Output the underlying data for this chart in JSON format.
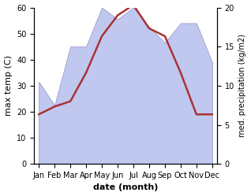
{
  "months": [
    "Jan",
    "Feb",
    "Mar",
    "Apr",
    "May",
    "Jun",
    "Jul",
    "Aug",
    "Sep",
    "Oct",
    "Nov",
    "Dec"
  ],
  "temp": [
    19,
    22,
    24,
    35,
    49,
    57,
    61,
    52,
    49,
    35,
    19,
    19
  ],
  "precip_kg": [
    10.5,
    7.5,
    15.0,
    15.0,
    20.0,
    18.5,
    20.0,
    17.5,
    15.5,
    18.0,
    18.0,
    13.0
  ],
  "temp_color": "#aa3333",
  "precip_fill_color": "#c0c8f0",
  "precip_edge_color": "#9090c8",
  "left_ylim": [
    0,
    60
  ],
  "right_ylim": [
    0,
    20
  ],
  "scale_factor": 3,
  "xlabel": "date (month)",
  "ylabel_left": "max temp (C)",
  "ylabel_right": "med. precipitation (kg/m2)",
  "bg_color": "#ffffff",
  "temp_linewidth": 1.8
}
